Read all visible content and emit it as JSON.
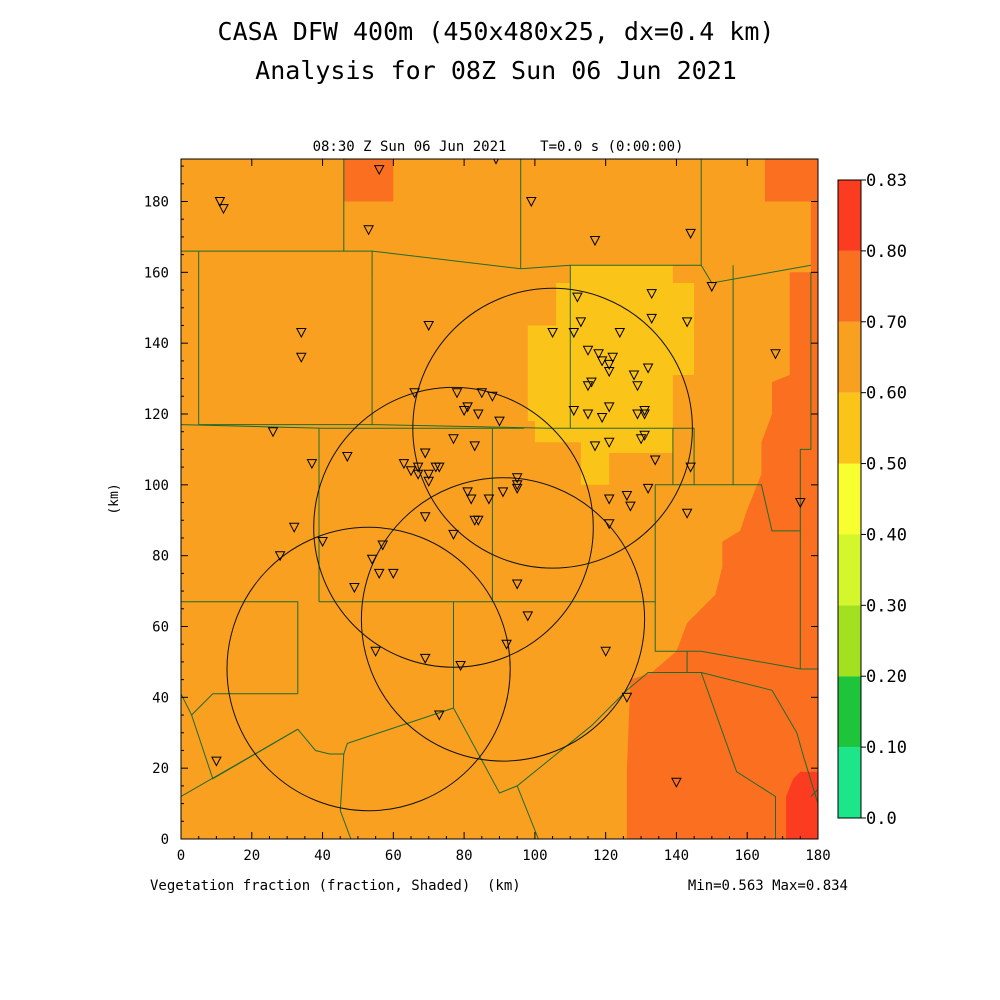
{
  "chart_data": {
    "type": "heatmap",
    "title_line1": "CASA DFW 400m (450x480x25, dx=0.4 km)",
    "title_line2": "Analysis for 08Z Sun 06 Jun 2021",
    "subtitle": "08:30 Z Sun 06 Jun 2021    T=0.0 s (0:00:00)",
    "xlabel": "(km)",
    "ylabel": "(km)",
    "field_label": "Vegetation fraction (fraction, Shaded)",
    "minmax": "Min=0.563 Max=0.834",
    "xlim": [
      0,
      180
    ],
    "ylim": [
      0,
      192
    ],
    "x_ticks": [
      0,
      20,
      40,
      60,
      80,
      100,
      120,
      140,
      160,
      180
    ],
    "y_ticks": [
      0,
      20,
      40,
      60,
      80,
      100,
      120,
      140,
      160,
      180
    ],
    "colorbar": {
      "levels": [
        "0.0",
        "0.10",
        "0.20",
        "0.30",
        "0.40",
        "0.50",
        "0.60",
        "0.70",
        "0.80",
        "0.83"
      ],
      "colors": [
        "#1de68a",
        "#1ec43a",
        "#a3e01e",
        "#d3f72a",
        "#f7ff2e",
        "#fbc418",
        "#f9a020",
        "#fa7020",
        "#fc3c20"
      ]
    },
    "regions": [
      {
        "level": "0.50-0.60",
        "color": "#fbc418",
        "polygon": [
          [
            110,
            162
          ],
          [
            139,
            162
          ],
          [
            139,
            157
          ],
          [
            145,
            157
          ],
          [
            145,
            131
          ],
          [
            139,
            131
          ],
          [
            139,
            109
          ],
          [
            121,
            109
          ],
          [
            121,
            100
          ],
          [
            113,
            100
          ],
          [
            113,
            112
          ],
          [
            100,
            112
          ],
          [
            100,
            118
          ],
          [
            98,
            118
          ],
          [
            98,
            145
          ],
          [
            106,
            145
          ],
          [
            106,
            157
          ],
          [
            110,
            157
          ]
        ]
      },
      {
        "level": "0.70-0.80",
        "color": "#fa7020",
        "polygon": [
          [
            46,
            192
          ],
          [
            60,
            192
          ],
          [
            60,
            180
          ],
          [
            46,
            180
          ]
        ]
      },
      {
        "level": "0.70-0.80",
        "color": "#fa7020",
        "polygon": [
          [
            165,
            192
          ],
          [
            180,
            192
          ],
          [
            180,
            0
          ],
          [
            126,
            0
          ],
          [
            126,
            20
          ],
          [
            127,
            45
          ],
          [
            133,
            47
          ],
          [
            140,
            53
          ],
          [
            143,
            61
          ],
          [
            151,
            69
          ],
          [
            153,
            77
          ],
          [
            153,
            84
          ],
          [
            158,
            87
          ],
          [
            160,
            93
          ],
          [
            164,
            103
          ],
          [
            164,
            112
          ],
          [
            167,
            120
          ],
          [
            167,
            129
          ],
          [
            172,
            131
          ],
          [
            172,
            160
          ],
          [
            178,
            160
          ],
          [
            178,
            180
          ],
          [
            165,
            180
          ]
        ]
      },
      {
        "level": "0.80-0.83",
        "color": "#fc3c20",
        "polygon": [
          [
            171,
            0
          ],
          [
            180,
            0
          ],
          [
            180,
            19
          ],
          [
            175,
            19
          ],
          [
            173,
            17
          ],
          [
            171,
            12
          ]
        ]
      }
    ],
    "range_rings": [
      {
        "center": [
          105,
          116
        ],
        "radius_km": 39.5
      },
      {
        "center": [
          77,
          88
        ],
        "radius_km": 39.5
      },
      {
        "center": [
          53,
          48
        ],
        "radius_km": 40
      },
      {
        "center": [
          91,
          62
        ],
        "radius_km": 40
      }
    ],
    "boundaries": [
      [
        [
          0,
          166
        ],
        [
          46,
          166
        ],
        [
          46,
          192
        ]
      ],
      [
        [
          46,
          166
        ],
        [
          54,
          166
        ],
        [
          54,
          158
        ]
      ],
      [
        [
          54,
          166
        ],
        [
          96,
          161
        ]
      ],
      [
        [
          96,
          161
        ],
        [
          96,
          192
        ]
      ],
      [
        [
          96,
          161
        ],
        [
          110,
          162
        ],
        [
          147,
          162
        ],
        [
          147,
          192
        ]
      ],
      [
        [
          147,
          162
        ],
        [
          150,
          157
        ],
        [
          178,
          162
        ]
      ],
      [
        [
          5,
          166
        ],
        [
          5,
          117
        ],
        [
          54,
          117
        ],
        [
          54,
          158
        ]
      ],
      [
        [
          54,
          117
        ],
        [
          104,
          116
        ],
        [
          139,
          116
        ],
        [
          139,
          100
        ]
      ],
      [
        [
          110,
          162
        ],
        [
          110,
          116
        ]
      ],
      [
        [
          0,
          117
        ],
        [
          40,
          116
        ],
        [
          65,
          116
        ],
        [
          97,
          116
        ]
      ],
      [
        [
          39,
          116
        ],
        [
          39,
          67
        ]
      ],
      [
        [
          88,
          116
        ],
        [
          88,
          67
        ]
      ],
      [
        [
          39,
          67
        ],
        [
          88,
          67
        ],
        [
          134,
          67
        ],
        [
          134,
          100
        ],
        [
          139,
          100
        ],
        [
          145,
          100
        ],
        [
          145,
          116
        ],
        [
          139,
          116
        ]
      ],
      [
        [
          145,
          100
        ],
        [
          156,
          100
        ],
        [
          156,
          162
        ]
      ],
      [
        [
          156,
          100
        ],
        [
          164,
          100
        ],
        [
          167,
          87
        ],
        [
          175,
          87
        ],
        [
          175,
          110
        ],
        [
          178,
          110
        ],
        [
          178,
          160
        ]
      ],
      [
        [
          0,
          67
        ],
        [
          33,
          67
        ],
        [
          33,
          41
        ]
      ],
      [
        [
          33,
          41
        ],
        [
          9,
          41
        ],
        [
          3,
          35
        ],
        [
          9,
          17
        ],
        [
          33,
          31
        ]
      ],
      [
        [
          0,
          41
        ],
        [
          3,
          35
        ]
      ],
      [
        [
          33,
          31
        ],
        [
          38,
          25
        ],
        [
          42,
          24
        ],
        [
          46,
          24
        ],
        [
          47,
          27
        ],
        [
          77,
          37
        ]
      ],
      [
        [
          77,
          37
        ],
        [
          77,
          67
        ]
      ],
      [
        [
          77,
          37
        ],
        [
          90,
          13
        ],
        [
          95,
          15
        ],
        [
          116,
          32
        ],
        [
          126,
          42
        ],
        [
          132,
          47
        ],
        [
          140,
          47
        ],
        [
          147,
          47
        ],
        [
          167,
          42
        ]
      ],
      [
        [
          0,
          12
        ],
        [
          33,
          31
        ]
      ],
      [
        [
          46,
          24
        ],
        [
          45,
          8
        ],
        [
          48,
          0
        ]
      ],
      [
        [
          95,
          15
        ],
        [
          101,
          0
        ]
      ],
      [
        [
          134,
          67
        ],
        [
          134,
          53
        ],
        [
          143,
          53
        ],
        [
          143,
          47
        ]
      ],
      [
        [
          143,
          53
        ],
        [
          147,
          53
        ],
        [
          175,
          48
        ],
        [
          180,
          48
        ]
      ],
      [
        [
          175,
          48
        ],
        [
          175,
          87
        ]
      ],
      [
        [
          147,
          47
        ],
        [
          157,
          19
        ],
        [
          168,
          12
        ],
        [
          168,
          0
        ]
      ],
      [
        [
          167,
          42
        ],
        [
          174,
          30
        ],
        [
          176,
          23
        ],
        [
          180,
          10
        ]
      ],
      [
        [
          178,
          12
        ],
        [
          180,
          14
        ]
      ]
    ],
    "stations": [
      [
        11,
        180
      ],
      [
        12,
        178
      ],
      [
        56,
        189
      ],
      [
        53,
        172
      ],
      [
        89,
        192
      ],
      [
        99,
        180
      ],
      [
        117,
        169
      ],
      [
        144,
        171
      ],
      [
        150,
        156
      ],
      [
        168,
        137
      ],
      [
        133,
        154
      ],
      [
        143,
        146
      ],
      [
        133,
        147
      ],
      [
        132,
        133
      ],
      [
        124,
        143
      ],
      [
        118,
        137
      ],
      [
        121,
        134
      ],
      [
        121,
        132
      ],
      [
        122,
        136
      ],
      [
        119,
        135
      ],
      [
        113,
        146
      ],
      [
        111,
        143
      ],
      [
        115,
        138
      ],
      [
        105,
        143
      ],
      [
        112,
        153
      ],
      [
        115,
        128
      ],
      [
        116,
        129
      ],
      [
        129,
        128
      ],
      [
        128,
        131
      ],
      [
        111,
        121
      ],
      [
        115,
        120
      ],
      [
        119,
        119
      ],
      [
        121,
        122
      ],
      [
        129,
        120
      ],
      [
        131,
        121
      ],
      [
        131,
        120
      ],
      [
        131,
        114
      ],
      [
        134,
        107
      ],
      [
        130,
        113
      ],
      [
        121,
        112
      ],
      [
        117,
        111
      ],
      [
        121,
        96
      ],
      [
        126,
        97
      ],
      [
        127,
        94
      ],
      [
        132,
        99
      ],
      [
        144,
        105
      ],
      [
        143,
        92
      ],
      [
        121,
        89
      ],
      [
        120,
        53
      ],
      [
        126,
        40
      ],
      [
        140,
        16
      ],
      [
        175,
        95
      ],
      [
        34,
        143
      ],
      [
        34,
        136
      ],
      [
        70,
        145
      ],
      [
        66,
        126
      ],
      [
        78,
        126
      ],
      [
        85,
        126
      ],
      [
        88,
        125
      ],
      [
        84,
        120
      ],
      [
        80,
        121
      ],
      [
        81,
        122
      ],
      [
        90,
        118
      ],
      [
        83,
        111
      ],
      [
        77,
        113
      ],
      [
        69,
        109
      ],
      [
        67,
        105
      ],
      [
        65,
        104
      ],
      [
        63,
        106
      ],
      [
        67,
        103
      ],
      [
        70,
        103
      ],
      [
        72,
        105
      ],
      [
        73,
        105
      ],
      [
        70,
        101
      ],
      [
        69,
        91
      ],
      [
        47,
        108
      ],
      [
        37,
        106
      ],
      [
        26,
        115
      ],
      [
        32,
        88
      ],
      [
        28,
        80
      ],
      [
        40,
        84
      ],
      [
        57,
        83
      ],
      [
        54,
        79
      ],
      [
        56,
        75
      ],
      [
        60,
        75
      ],
      [
        49,
        71
      ],
      [
        81,
        98
      ],
      [
        82,
        96
      ],
      [
        83,
        90
      ],
      [
        84,
        90
      ],
      [
        77,
        86
      ],
      [
        87,
        96
      ],
      [
        91,
        98
      ],
      [
        95,
        102
      ],
      [
        95,
        100
      ],
      [
        95,
        99
      ],
      [
        95,
        72
      ],
      [
        98,
        63
      ],
      [
        92,
        55
      ],
      [
        55,
        53
      ],
      [
        69,
        51
      ],
      [
        79,
        49
      ],
      [
        73,
        35
      ],
      [
        10,
        22
      ]
    ]
  }
}
